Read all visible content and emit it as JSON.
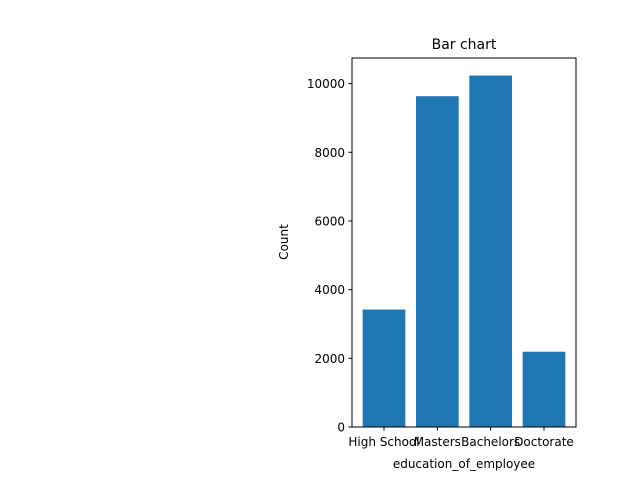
{
  "chart_data": {
    "type": "bar",
    "title": "Bar chart",
    "xlabel": "education_of_employee",
    "ylabel": "Count",
    "categories": [
      "High School",
      "Masters",
      "Bachelors",
      "Doctorate"
    ],
    "values": [
      3420,
      9634,
      10234,
      2192
    ],
    "ylim": [
      0,
      10746
    ],
    "yticks": [
      0,
      2000,
      4000,
      6000,
      8000,
      10000
    ],
    "bar_color": "#1f77b4",
    "grid": false,
    "legend": "none"
  }
}
